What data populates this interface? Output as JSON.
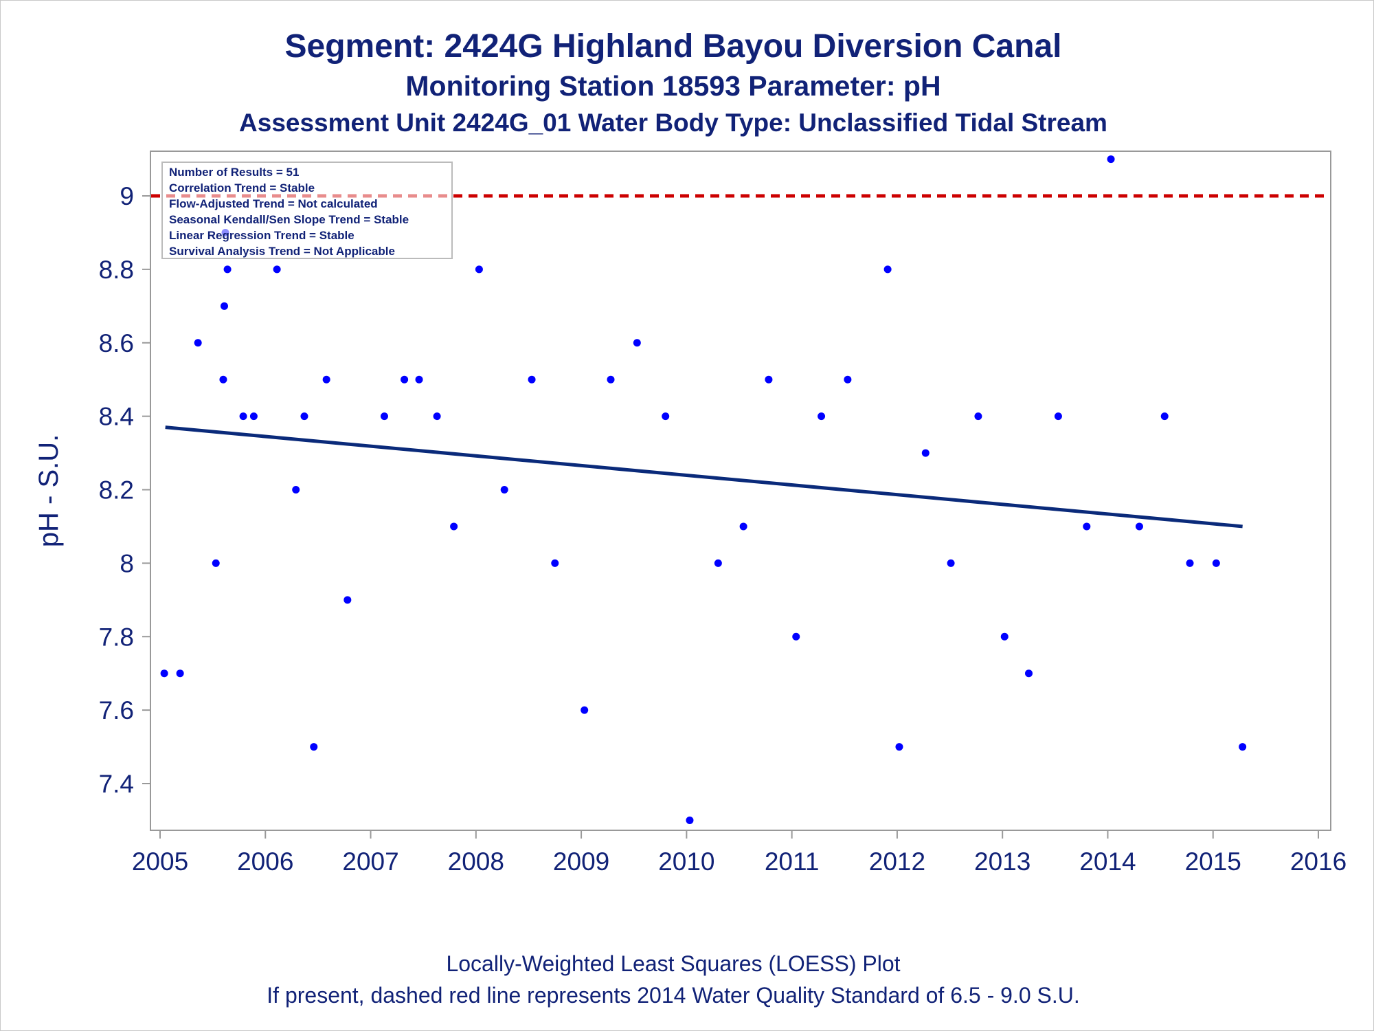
{
  "titles": {
    "line1": "Segment: 2424G  Highland Bayou Diversion Canal",
    "line2": "Monitoring Station 18593 Parameter: pH",
    "line3": "Assessment Unit 2424G_01   Water Body Type: Unclassified Tidal Stream"
  },
  "footnotes": {
    "line1": "Locally-Weighted Least Squares (LOESS) Plot",
    "line2": "If present, dashed red line represents 2014 Water Quality Standard of 6.5 - 9.0 S.U."
  },
  "stats_box": [
    "Number of Results = 51",
    "Correlation Trend = Stable",
    "Flow-Adjusted Trend = Not calculated",
    "Seasonal Kendall/Sen Slope Trend = Stable",
    "Linear Regression Trend = Stable",
    "Survival Analysis Trend = Not Applicable"
  ],
  "colors": {
    "text": "#112277",
    "points": "#0000ff",
    "trend_line": "#0a2a7a",
    "standard_line": "#cc0000",
    "axis": "#999999"
  },
  "chart_data": {
    "type": "scatter",
    "title": "Segment: 2424G  Highland Bayou Diversion Canal",
    "xlabel": "",
    "ylabel": "pH - S.U.",
    "xlim": [
      2005,
      2016
    ],
    "ylim": [
      7.29,
      9.12
    ],
    "x_ticks": [
      2005,
      2006,
      2007,
      2008,
      2009,
      2010,
      2011,
      2012,
      2013,
      2014,
      2015,
      2016
    ],
    "y_ticks": [
      7.4,
      7.6,
      7.8,
      8,
      8.2,
      8.4,
      8.6,
      8.8,
      9
    ],
    "y_tick_labels": [
      "7.4",
      "7.6",
      "7.8",
      "8",
      "8.2",
      "8.4",
      "8.6",
      "8.8",
      "9"
    ],
    "grid": false,
    "legend": "top-left",
    "reference_line": {
      "y": 9.0,
      "style": "dashed"
    },
    "trend_line": {
      "x": [
        2005.05,
        2015.28
      ],
      "y": [
        8.37,
        8.1
      ]
    },
    "points": [
      {
        "x": 2005.04,
        "y": 7.7
      },
      {
        "x": 2005.19,
        "y": 7.7
      },
      {
        "x": 2005.36,
        "y": 8.6
      },
      {
        "x": 2005.53,
        "y": 8.0
      },
      {
        "x": 2005.6,
        "y": 8.5
      },
      {
        "x": 2005.61,
        "y": 8.7
      },
      {
        "x": 2005.62,
        "y": 8.9
      },
      {
        "x": 2005.64,
        "y": 8.8
      },
      {
        "x": 2005.79,
        "y": 8.4
      },
      {
        "x": 2005.89,
        "y": 8.4
      },
      {
        "x": 2006.11,
        "y": 8.8
      },
      {
        "x": 2006.29,
        "y": 8.2
      },
      {
        "x": 2006.37,
        "y": 8.4
      },
      {
        "x": 2006.46,
        "y": 7.5
      },
      {
        "x": 2006.58,
        "y": 8.5
      },
      {
        "x": 2006.78,
        "y": 7.9
      },
      {
        "x": 2007.13,
        "y": 8.4
      },
      {
        "x": 2007.32,
        "y": 8.5
      },
      {
        "x": 2007.46,
        "y": 8.5
      },
      {
        "x": 2007.63,
        "y": 8.4
      },
      {
        "x": 2007.79,
        "y": 8.1
      },
      {
        "x": 2008.03,
        "y": 8.8
      },
      {
        "x": 2008.27,
        "y": 8.2
      },
      {
        "x": 2008.53,
        "y": 8.5
      },
      {
        "x": 2008.75,
        "y": 8.0
      },
      {
        "x": 2009.03,
        "y": 7.6
      },
      {
        "x": 2009.28,
        "y": 8.5
      },
      {
        "x": 2009.53,
        "y": 8.6
      },
      {
        "x": 2009.8,
        "y": 8.4
      },
      {
        "x": 2010.03,
        "y": 7.3
      },
      {
        "x": 2010.3,
        "y": 8.0
      },
      {
        "x": 2010.54,
        "y": 8.1
      },
      {
        "x": 2010.78,
        "y": 8.5
      },
      {
        "x": 2011.04,
        "y": 7.8
      },
      {
        "x": 2011.28,
        "y": 8.4
      },
      {
        "x": 2011.53,
        "y": 8.5
      },
      {
        "x": 2011.91,
        "y": 8.8
      },
      {
        "x": 2012.02,
        "y": 7.5
      },
      {
        "x": 2012.27,
        "y": 8.3
      },
      {
        "x": 2012.51,
        "y": 8.0
      },
      {
        "x": 2012.77,
        "y": 8.4
      },
      {
        "x": 2013.02,
        "y": 7.8
      },
      {
        "x": 2013.25,
        "y": 7.7
      },
      {
        "x": 2013.53,
        "y": 8.4
      },
      {
        "x": 2013.8,
        "y": 8.1
      },
      {
        "x": 2014.03,
        "y": 9.1
      },
      {
        "x": 2014.3,
        "y": 8.1
      },
      {
        "x": 2014.54,
        "y": 8.4
      },
      {
        "x": 2014.78,
        "y": 8.0
      },
      {
        "x": 2015.03,
        "y": 8.0
      },
      {
        "x": 2015.28,
        "y": 7.5
      }
    ]
  }
}
